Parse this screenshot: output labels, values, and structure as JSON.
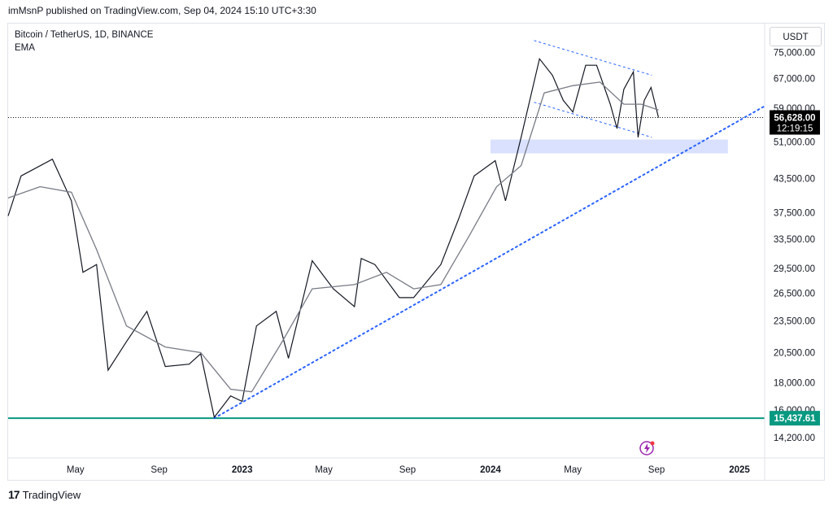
{
  "header": {
    "published": "imMsnP published on TradingView.com, Sep 04, 2024 15:10 UTC+3:30"
  },
  "pane": {
    "symbol": "Bitcoin / TetherUS, 1D, BINANCE",
    "indicator": "EMA"
  },
  "currency_button": "USDT",
  "footer": {
    "brand": "TradingView"
  },
  "colors": {
    "price": "#131722",
    "ema": "#787b86",
    "trendline": "#2962ff",
    "support_zone": "#d0d9ff",
    "support_line": "#089981",
    "last_price_bg": "#000000"
  },
  "price_labels": {
    "last_price": "56,628.00",
    "countdown": "12:19:15",
    "support": "15,437.61"
  },
  "chart_data": {
    "type": "line",
    "title": "",
    "xlabel": "",
    "ylabel": "",
    "y_scale": "log",
    "ylim": [
      13000,
      85000
    ],
    "x_tick_labels": [
      "May",
      "Sep",
      "2023",
      "May",
      "Sep",
      "2024",
      "May",
      "Sep",
      "2025"
    ],
    "y_tick_labels": [
      "75,000.00",
      "67,000.00",
      "59,000.00",
      "51,000.00",
      "43,500.00",
      "37,500.00",
      "33,500.00",
      "29,500.00",
      "26,500.00",
      "23,500.00",
      "20,500.00",
      "18,000.00",
      "16,000.00",
      "14,200.00"
    ],
    "series": [
      {
        "x": [
          "2022-01-22",
          "2022-02-10",
          "2022-03-28",
          "2022-04-25",
          "2022-05-12",
          "2022-06-01",
          "2022-06-18",
          "2022-07-15",
          "2022-08-14",
          "2022-09-10",
          "2022-10-15",
          "2022-11-01",
          "2022-11-21",
          "2022-12-15",
          "2023-01-01",
          "2023-01-22",
          "2023-02-20",
          "2023-03-10",
          "2023-04-14",
          "2023-05-15",
          "2023-06-15",
          "2023-06-25",
          "2023-07-15",
          "2023-08-20",
          "2023-09-10",
          "2023-10-20",
          "2023-11-15",
          "2023-12-08",
          "2024-01-08",
          "2024-01-23",
          "2024-02-15",
          "2024-03-13",
          "2024-04-01",
          "2024-04-17",
          "2024-05-01",
          "2024-05-20",
          "2024-06-05",
          "2024-06-25",
          "2024-07-05",
          "2024-07-15",
          "2024-07-29",
          "2024-08-05",
          "2024-08-14",
          "2024-08-24",
          "2024-09-04"
        ],
        "y": [
          37000,
          44000,
          47300,
          39500,
          29000,
          30000,
          19000,
          21500,
          24500,
          19300,
          19500,
          20400,
          15500,
          17000,
          16600,
          23000,
          24500,
          20000,
          30500,
          27000,
          25000,
          30800,
          30000,
          26000,
          26000,
          30000,
          36500,
          44000,
          47000,
          39500,
          52000,
          73000,
          68000,
          61000,
          58000,
          71000,
          71000,
          60000,
          54000,
          64000,
          69000,
          52000,
          61000,
          64500,
          56628
        ]
      },
      {
        "name": "",
        "x": [
          "2022-01-22",
          "2022-03-10",
          "2022-04-25",
          "2022-06-01",
          "2022-07-15",
          "2022-09-10",
          "2022-11-01",
          "2022-12-15",
          "2023-01-15",
          "2023-03-01",
          "2023-04-14",
          "2023-06-15",
          "2023-08-01",
          "2023-09-10",
          "2023-10-20",
          "2023-12-01",
          "2024-01-10",
          "2024-02-15",
          "2024-03-20",
          "2024-05-01",
          "2024-06-10",
          "2024-07-15",
          "2024-08-10",
          "2024-09-04"
        ],
        "y": [
          40000,
          42000,
          41000,
          32000,
          23000,
          21000,
          20500,
          17500,
          17300,
          21500,
          27000,
          27500,
          29000,
          27000,
          27500,
          34000,
          42000,
          46000,
          63000,
          65000,
          66000,
          60000,
          60000,
          58500
        ]
      }
    ],
    "annotations": {
      "support_zone": {
        "y_range": [
          48500,
          51500
        ],
        "x_range": [
          "2024-01-01",
          "2024-12-15"
        ]
      },
      "channel_upper": {
        "x": [
          "2024-03-05",
          "2024-08-25"
        ],
        "y": [
          79000,
          68000
        ]
      },
      "channel_lower": {
        "x": [
          "2024-03-05",
          "2024-08-25"
        ],
        "y": [
          60500,
          52000
        ]
      },
      "ascending_trendline": {
        "x": [
          "2022-11-21",
          "2025-02-07"
        ],
        "y": [
          15437.61,
          59500
        ]
      },
      "horizontal_support": {
        "y": 15437.61
      },
      "last_price_line": {
        "y": 56628
      }
    }
  }
}
